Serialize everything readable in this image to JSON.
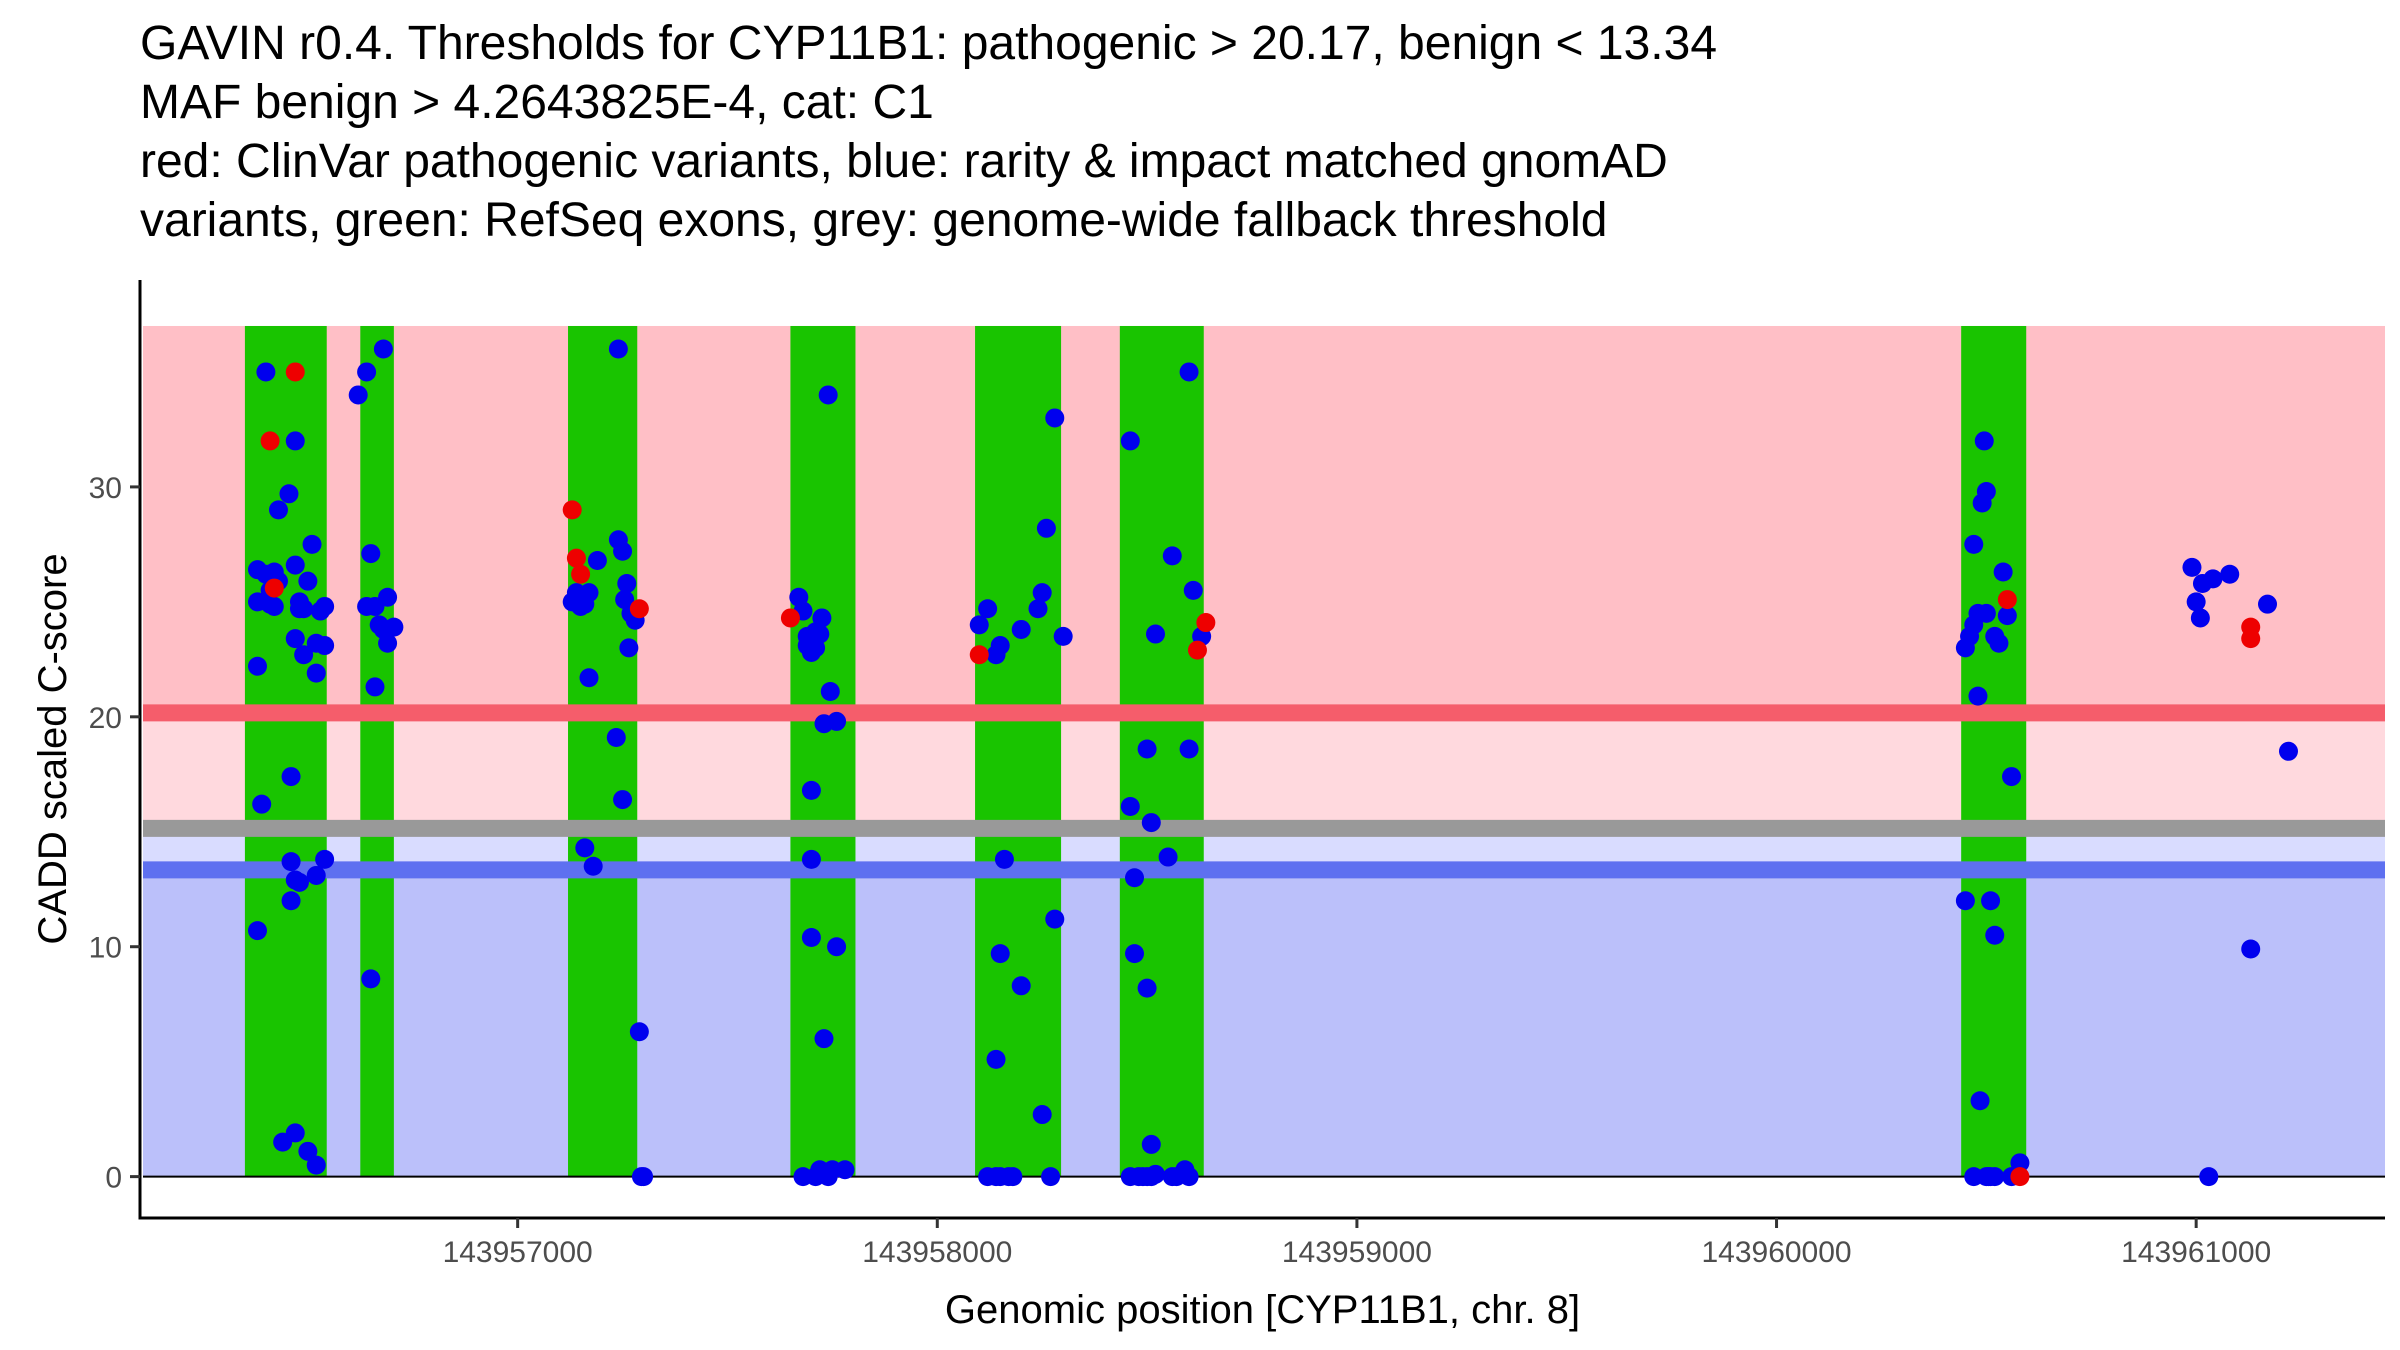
{
  "chart_data": {
    "type": "scatter",
    "title_lines": [
      "GAVIN r0.4. Thresholds for CYP11B1: pathogenic > 20.17, benign < 13.34",
      "MAF benign > 4.2643825E-4, cat: C1",
      "red: ClinVar pathogenic variants, blue: rarity & impact matched gnomAD",
      "variants, green: RefSeq exons, grey: genome-wide fallback threshold"
    ],
    "xlabel": "Genomic position [CYP11B1, chr. 8]",
    "ylabel": "CADD scaled C-score",
    "xlim": [
      143956100,
      143961450
    ],
    "ylim": [
      -1.8,
      39
    ],
    "x_ticks": [
      {
        "value": 143957000,
        "label": "143957000"
      },
      {
        "value": 143958000,
        "label": "143958000"
      },
      {
        "value": 143959000,
        "label": "143959000"
      },
      {
        "value": 143960000,
        "label": "143960000"
      },
      {
        "value": 143961000,
        "label": "143961000"
      }
    ],
    "y_ticks": [
      {
        "value": 0,
        "label": "0"
      },
      {
        "value": 10,
        "label": "10"
      },
      {
        "value": 20,
        "label": "20"
      },
      {
        "value": 30,
        "label": "30"
      }
    ],
    "colors": {
      "pathogenic_region": "#ffbfc6",
      "uncertain_pathogenic_region": "#ffd9de",
      "uncertain_benign_region": "#d9dcff",
      "benign_region": "#bbc0fa",
      "pathogenic_line": "#f55d6b",
      "fallback_line": "#999999",
      "benign_line": "#5e70f0",
      "exon": "#19c400",
      "gnomad_point": "#0000ee",
      "clinvar_point": "#ee0000"
    },
    "regions": {
      "plot_top": 37,
      "pathogenic_threshold": 20.17,
      "fallback_threshold": 15.15,
      "benign_threshold": 13.34
    },
    "exons": [
      [
        143956350,
        143956545
      ],
      [
        143956625,
        143956705
      ],
      [
        143957120,
        143957285
      ],
      [
        143957650,
        143957805
      ],
      [
        143958090,
        143958295
      ],
      [
        143958435,
        143958635
      ],
      [
        143960440,
        143960595
      ]
    ],
    "series": [
      {
        "name": "gnomAD",
        "x": [
          143956380,
          143956390,
          143956400,
          143956410,
          143956420,
          143956380,
          143956400,
          143956420,
          143956380,
          143956410,
          143956430,
          143956455,
          143956470,
          143956480,
          143956500,
          143956520,
          143956540,
          143956470,
          143956490,
          143956510,
          143956530,
          143956460,
          143956480,
          143956520,
          143956540,
          143956380,
          143956460,
          143956440,
          143956470,
          143956500,
          143956520,
          143956540,
          143956430,
          143956470,
          143956480,
          143956490,
          143956420,
          143956520,
          143956470,
          143956460,
          143956620,
          143956640,
          143956680,
          143956650,
          143956640,
          143956660,
          143956690,
          143956680,
          143956690,
          143956660,
          143956705,
          143956650,
          143956670,
          143957130,
          143957140,
          143957160,
          143957170,
          143957150,
          143957170,
          143957160,
          143957180,
          143957190,
          143957240,
          143957250,
          143957255,
          143957240,
          143957260,
          143957270,
          143957280,
          143957250,
          143957265,
          143957235,
          143957290,
          143957295,
          143957300,
          143957690,
          143957700,
          143957710,
          143957720,
          143957690,
          143957700,
          143957710,
          143957725,
          143957670,
          143957680,
          143957740,
          143957745,
          143957760,
          143957730,
          143957700,
          143957700,
          143957700,
          143957730,
          143957720,
          143957680,
          143957780,
          143957710,
          143957720,
          143957740,
          143957750,
          143957760,
          143958100,
          143958120,
          143958140,
          143958150,
          143958160,
          143958200,
          143958240,
          143958280,
          143958300,
          143958260,
          143958280,
          143958140,
          143958150,
          143958120,
          143958200,
          143958250,
          143958270,
          143958140,
          143958150,
          143958170,
          143958180,
          143958250,
          143958460,
          143958500,
          143958510,
          143958520,
          143958550,
          143958560,
          143958600,
          143958610,
          143958630,
          143958600,
          143958460,
          143958470,
          143958500,
          143958510,
          143958470,
          143958510,
          143958560,
          143958490,
          143958500,
          143958520,
          143958570,
          143958590,
          143958600,
          143958460,
          143958480,
          143960450,
          143960460,
          143960470,
          143960480,
          143960490,
          143960500,
          143960520,
          143960530,
          143960540,
          143960550,
          143960560,
          143960480,
          143960495,
          143960500,
          143960510,
          143960470,
          143960485,
          143960520,
          143960580,
          143960450,
          143960500,
          143960505,
          143960470,
          143960560,
          143960510,
          143960520,
          143960990,
          143961000,
          143961010,
          143961040,
          143961080,
          143961170,
          143961030,
          143961220,
          143961130,
          143961015
        ],
        "y": [
          22.2,
          16.2,
          35,
          25.5,
          24.8,
          26.4,
          26.2,
          26,
          25,
          24.9,
          25.9,
          29.7,
          32,
          25,
          25.9,
          21.9,
          23.1,
          23.4,
          22.7,
          27.5,
          24.6,
          17.4,
          12.8,
          13.1,
          13.8,
          10.7,
          12,
          1.5,
          1.9,
          1.1,
          0.5,
          24.8,
          29,
          26.6,
          24.7,
          24.7,
          26.3,
          23.2,
          12.9,
          13.7,
          34,
          35,
          36,
          27.1,
          24.8,
          24.8,
          25.2,
          23.8,
          23.2,
          21.3,
          23.9,
          8.6,
          24,
          25,
          25.4,
          24.9,
          25.4,
          24.8,
          21.7,
          14.3,
          13.5,
          26.8,
          27.7,
          27.2,
          25.1,
          36,
          25.8,
          24.5,
          24.2,
          16.4,
          23,
          19.1,
          6.3,
          0,
          0,
          23.1,
          23.4,
          23,
          23.6,
          23.5,
          22.8,
          23.7,
          24.3,
          25.2,
          24.6,
          34,
          21.1,
          19.8,
          19.7,
          16.8,
          13.8,
          10.4,
          6,
          0.3,
          0,
          0.3,
          0,
          0.2,
          0,
          0.3,
          10,
          24,
          24.7,
          22.7,
          23.1,
          13.8,
          23.8,
          24.7,
          33,
          23.5,
          28.2,
          11.2,
          5.1,
          9.7,
          0,
          8.3,
          2.7,
          0,
          0,
          0,
          0,
          0,
          25.4,
          32,
          18.6,
          15.4,
          23.6,
          13.9,
          27,
          35,
          25.5,
          23.5,
          18.6,
          16.1,
          13,
          8.2,
          1.4,
          9.7,
          0,
          0,
          0,
          0,
          0.1,
          0,
          0.3,
          0,
          0,
          0,
          23,
          23.5,
          24,
          24.5,
          29.3,
          29.8,
          23.5,
          23.2,
          26.3,
          24.4,
          17.4,
          20.9,
          32,
          24.5,
          12,
          27.5,
          3.3,
          10.5,
          0.6,
          12,
          0,
          0,
          0,
          0,
          0,
          0,
          26.5,
          25,
          24.3,
          26,
          26.2,
          24.9,
          0,
          18.5,
          9.9,
          25.8
        ],
        "color": "#0000ee"
      },
      {
        "name": "ClinVar",
        "x": [
          143956410,
          143956420,
          143956470,
          143957130,
          143957140,
          143957150,
          143957290,
          143957650,
          143958100,
          143958620,
          143958640,
          143960550,
          143960580,
          143961130,
          143961130
        ],
        "y": [
          32,
          25.6,
          35,
          29,
          26.9,
          26.2,
          24.7,
          24.3,
          22.7,
          22.9,
          24.1,
          25.1,
          0,
          23.9,
          23.4
        ],
        "color": "#ee0000"
      }
    ]
  }
}
